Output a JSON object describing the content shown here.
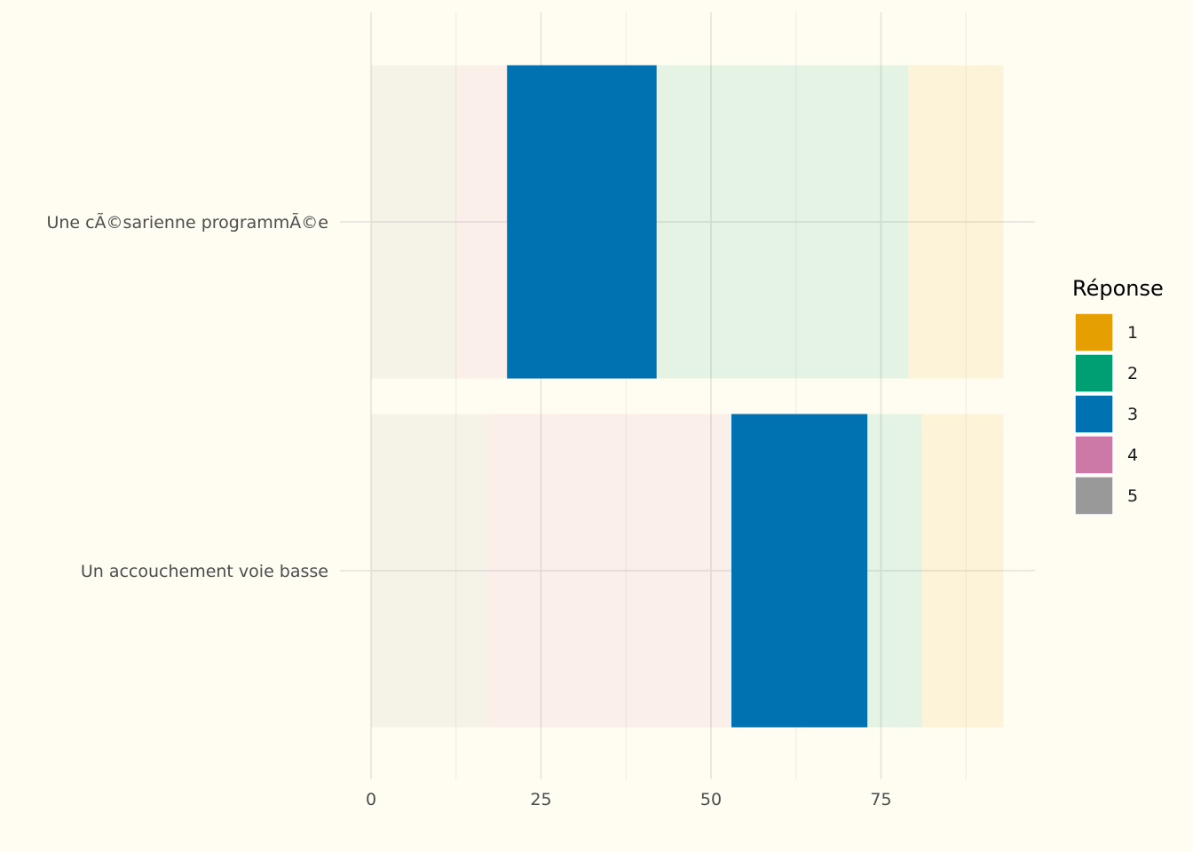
{
  "chart_data": {
    "type": "bar",
    "orientation": "horizontal",
    "stacked": true,
    "highlighted_response": "3",
    "categories": [
      "Une cÃ©sarienne programmÃ©e",
      "Un accouchement voie basse"
    ],
    "series": [
      {
        "name": "5",
        "color": "#999999",
        "values": [
          12.5,
          17
        ]
      },
      {
        "name": "4",
        "color": "#CC79A7",
        "values": [
          7.5,
          36
        ]
      },
      {
        "name": "3",
        "color": "#0072B2",
        "values": [
          22,
          20
        ]
      },
      {
        "name": "2",
        "color": "#009E73",
        "values": [
          37,
          8
        ]
      },
      {
        "name": "1",
        "color": "#E69F00",
        "values": [
          14,
          12
        ]
      }
    ],
    "x_ticks": [
      "0",
      "25",
      "50",
      "75"
    ],
    "xlim": [
      -0.5,
      97
    ],
    "grid": true,
    "legend": {
      "title": "Réponse",
      "position": "right",
      "items": [
        {
          "label": "1",
          "color": "#E69F00"
        },
        {
          "label": "2",
          "color": "#009E73"
        },
        {
          "label": "3",
          "color": "#0072B2"
        },
        {
          "label": "4",
          "color": "#CC79A7"
        },
        {
          "label": "5",
          "color": "#999999"
        }
      ]
    },
    "colors": {
      "background": "#FFFDF1",
      "grid_major": "#E4E2DA",
      "grid_minor": "#EEECE3",
      "text": "#4D4D4D"
    }
  }
}
